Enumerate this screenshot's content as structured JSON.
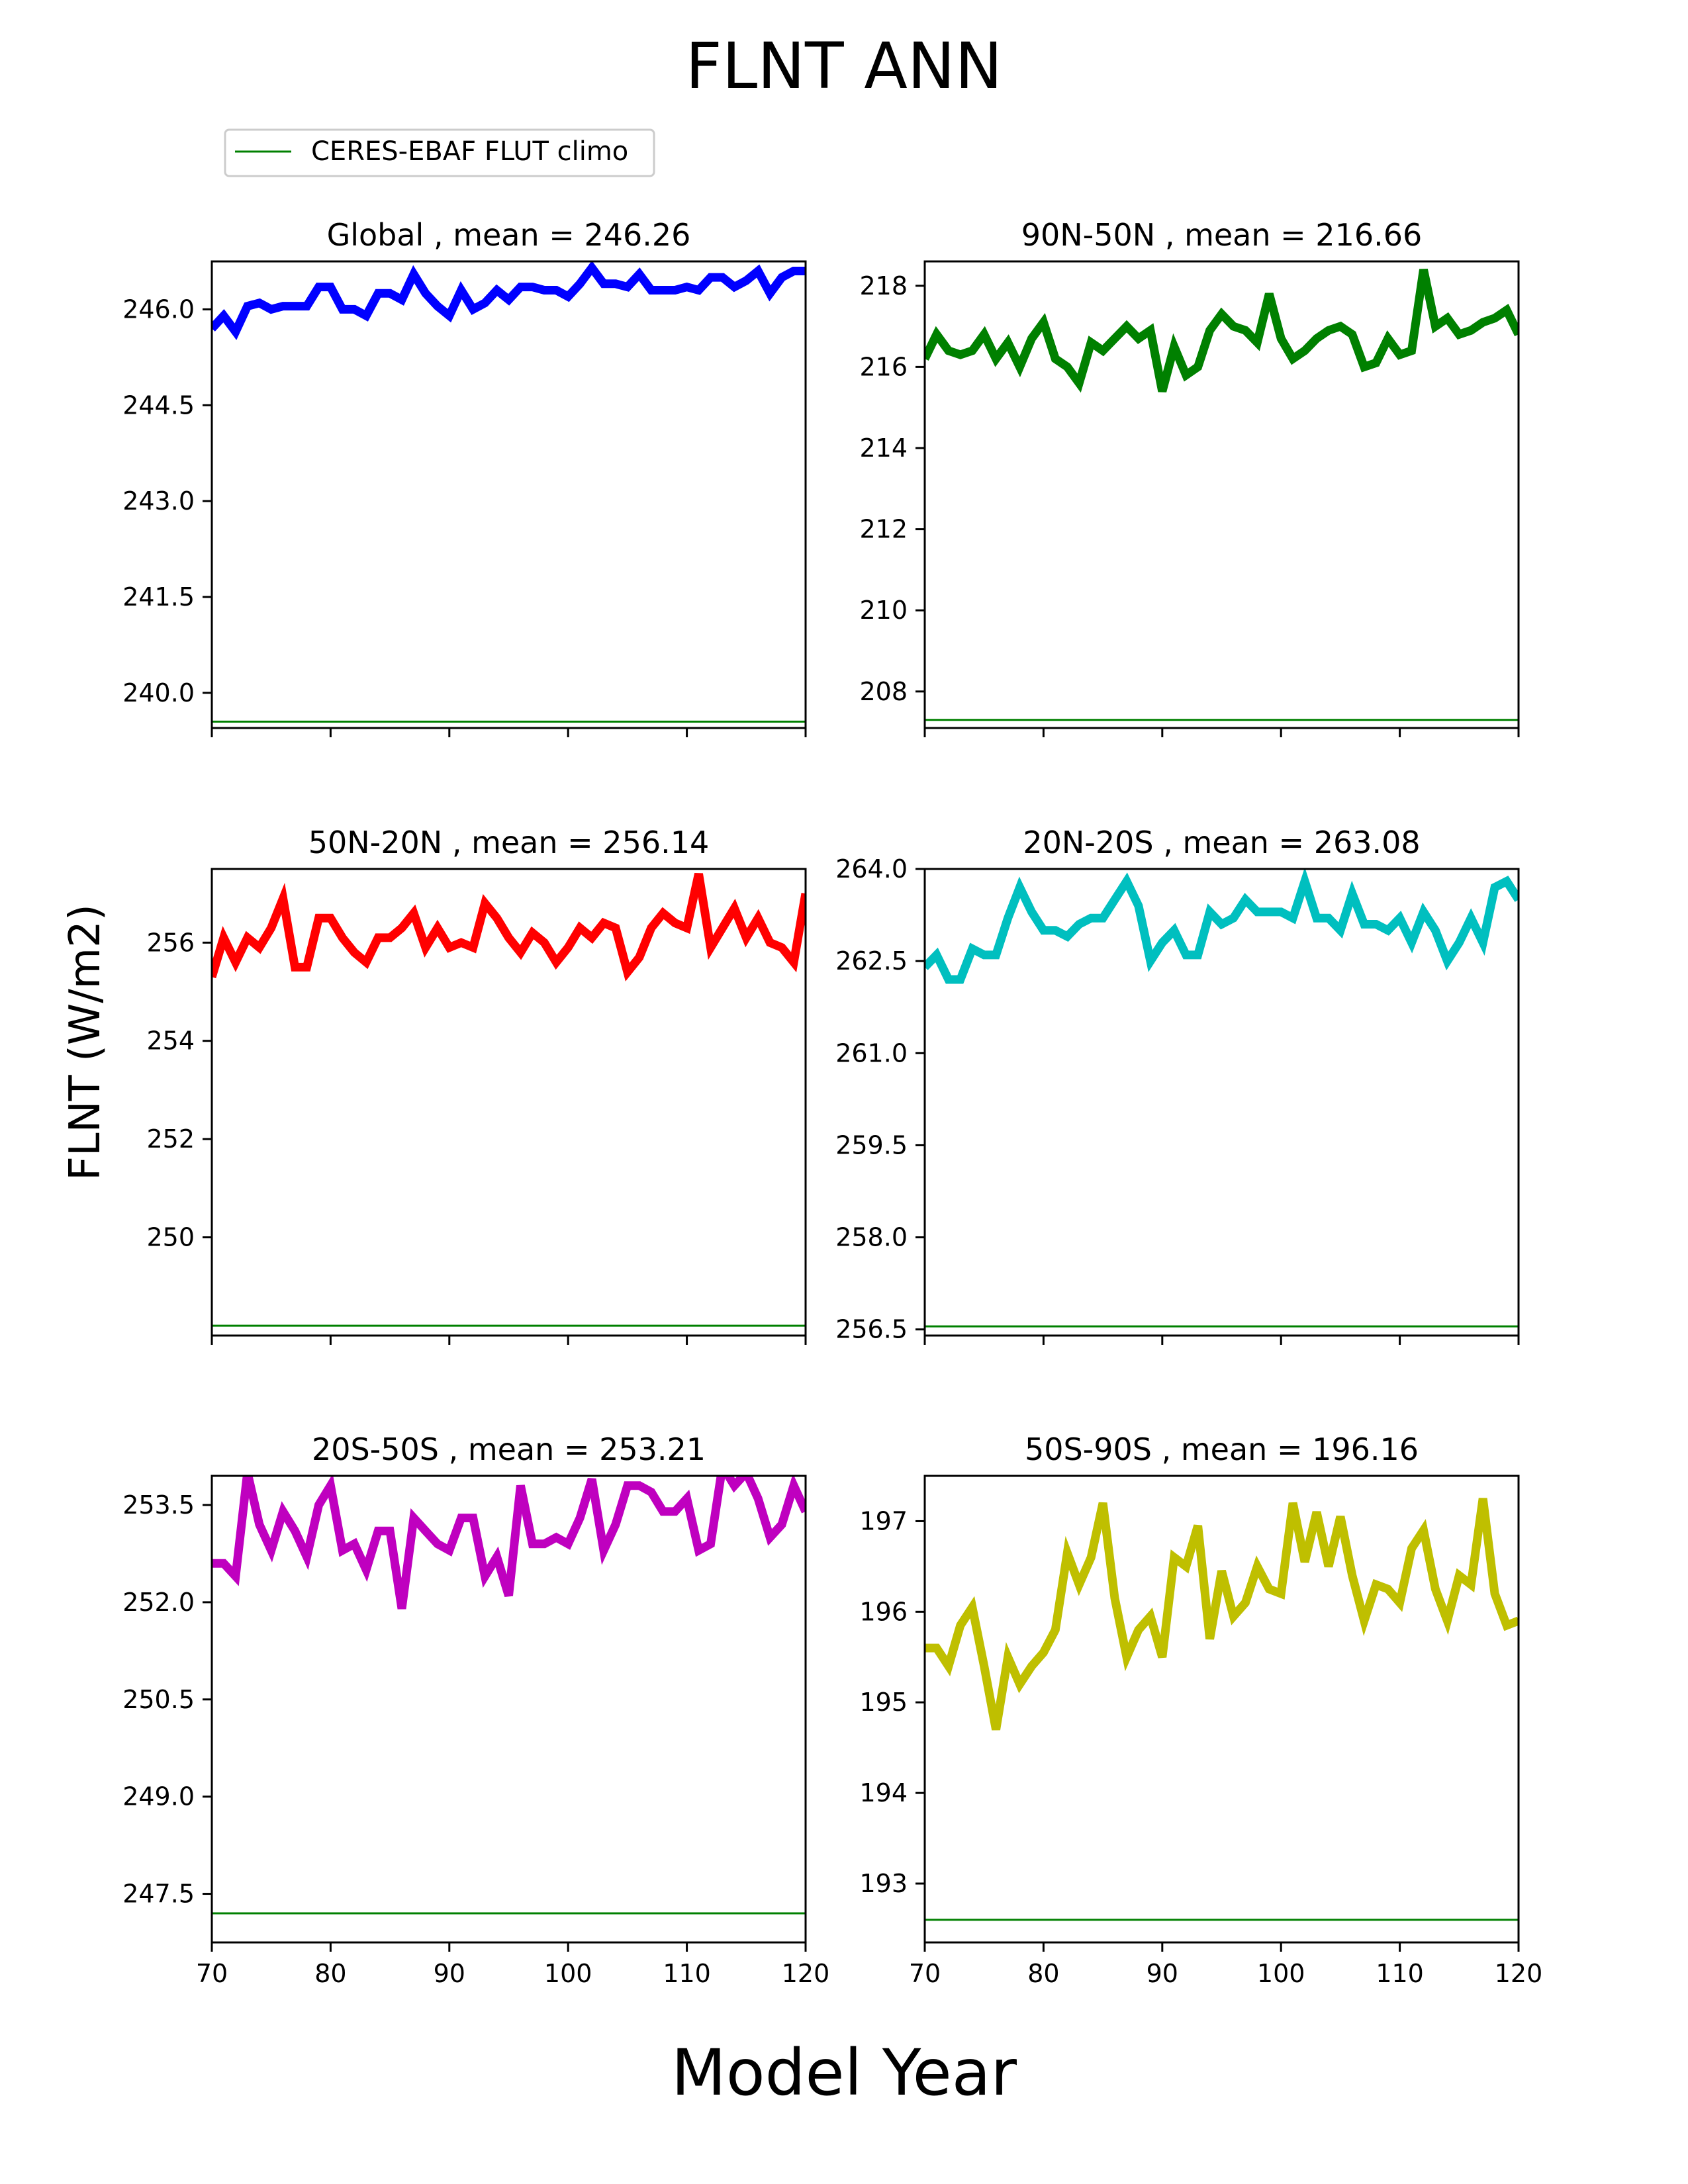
{
  "figure": {
    "title": "FLNT ANN",
    "ylabel": "FLNT (W/m2)",
    "xlabel": "Model Year"
  },
  "legend": {
    "label": "CERES-EBAF FLUT climo",
    "color": "#008000",
    "placement": "top-left"
  },
  "chart_data": [
    {
      "type": "line",
      "title": "Global , mean = 246.26",
      "color": "#0000ff",
      "xlim": [
        70,
        120
      ],
      "ylim": [
        239.45,
        246.75
      ],
      "yticks": [
        240.0,
        241.5,
        243.0,
        244.5,
        246.0
      ],
      "ytick_labels": [
        "240.0",
        "241.5",
        "243.0",
        "244.5",
        "246.0"
      ],
      "xticks": [
        70,
        80,
        90,
        100,
        110,
        120
      ],
      "xtick_labels": [],
      "climo": 239.55,
      "x": [
        70,
        71,
        72,
        73,
        74,
        75,
        76,
        77,
        78,
        79,
        80,
        81,
        82,
        83,
        84,
        85,
        86,
        87,
        88,
        89,
        90,
        91,
        92,
        93,
        94,
        95,
        96,
        97,
        98,
        99,
        100,
        101,
        102,
        103,
        104,
        105,
        106,
        107,
        108,
        109,
        110,
        111,
        112,
        113,
        114,
        115,
        116,
        117,
        118,
        119,
        120
      ],
      "values": [
        245.7,
        245.9,
        245.65,
        246.05,
        246.1,
        246.0,
        246.05,
        246.05,
        246.05,
        246.35,
        246.35,
        246.0,
        246.0,
        245.9,
        246.25,
        246.25,
        246.15,
        246.55,
        246.25,
        246.05,
        245.9,
        246.3,
        246.0,
        246.1,
        246.3,
        246.15,
        246.35,
        246.35,
        246.3,
        246.3,
        246.2,
        246.4,
        246.65,
        246.4,
        246.4,
        246.35,
        246.55,
        246.3,
        246.3,
        246.3,
        246.35,
        246.3,
        246.5,
        246.5,
        246.35,
        246.45,
        246.6,
        246.25,
        246.5,
        246.6,
        246.6
      ]
    },
    {
      "type": "line",
      "title": "90N-50N , mean = 216.66",
      "color": "#008000",
      "xlim": [
        70,
        120
      ],
      "ylim": [
        207.1,
        218.6
      ],
      "yticks": [
        208,
        210,
        212,
        214,
        216,
        218
      ],
      "ytick_labels": [
        "208",
        "210",
        "212",
        "214",
        "216",
        "218"
      ],
      "xticks": [
        70,
        80,
        90,
        100,
        110,
        120
      ],
      "xtick_labels": [],
      "climo": 207.3,
      "x": [
        70,
        71,
        72,
        73,
        74,
        75,
        76,
        77,
        78,
        79,
        80,
        81,
        82,
        83,
        84,
        85,
        86,
        87,
        88,
        89,
        90,
        91,
        92,
        93,
        94,
        95,
        96,
        97,
        98,
        99,
        100,
        101,
        102,
        103,
        104,
        105,
        106,
        107,
        108,
        109,
        110,
        111,
        112,
        113,
        114,
        115,
        116,
        117,
        118,
        119,
        120
      ],
      "values": [
        216.2,
        216.8,
        216.4,
        216.3,
        216.4,
        216.8,
        216.2,
        216.6,
        216.0,
        216.7,
        217.1,
        216.2,
        216.0,
        215.6,
        216.6,
        216.4,
        216.7,
        217.0,
        216.7,
        216.9,
        215.4,
        216.5,
        215.8,
        216.0,
        216.9,
        217.3,
        217.0,
        216.9,
        216.6,
        217.8,
        216.7,
        216.2,
        216.4,
        216.7,
        216.9,
        217.0,
        216.8,
        216.0,
        216.1,
        216.7,
        216.3,
        216.4,
        218.4,
        217.0,
        217.2,
        216.8,
        216.9,
        217.1,
        217.2,
        217.4,
        216.8
      ]
    },
    {
      "type": "line",
      "title": "50N-20N , mean = 256.14",
      "color": "#ff0000",
      "xlim": [
        70,
        120
      ],
      "ylim": [
        248.0,
        257.5
      ],
      "yticks": [
        250,
        252,
        254,
        256
      ],
      "ytick_labels": [
        "250",
        "252",
        "254",
        "256"
      ],
      "xticks": [
        70,
        80,
        90,
        100,
        110,
        120
      ],
      "xtick_labels": [],
      "climo": 248.2,
      "x": [
        70,
        71,
        72,
        73,
        74,
        75,
        76,
        77,
        78,
        79,
        80,
        81,
        82,
        83,
        84,
        85,
        86,
        87,
        88,
        89,
        90,
        91,
        92,
        93,
        94,
        95,
        96,
        97,
        98,
        99,
        100,
        101,
        102,
        103,
        104,
        105,
        106,
        107,
        108,
        109,
        110,
        111,
        112,
        113,
        114,
        115,
        116,
        117,
        118,
        119,
        120
      ],
      "values": [
        255.3,
        256.1,
        255.6,
        256.1,
        255.9,
        256.3,
        256.9,
        255.5,
        255.5,
        256.5,
        256.5,
        256.1,
        255.8,
        255.6,
        256.1,
        256.1,
        256.3,
        256.6,
        255.9,
        256.3,
        255.9,
        256.0,
        255.9,
        256.8,
        256.5,
        256.1,
        255.8,
        256.2,
        256.0,
        255.6,
        255.9,
        256.3,
        256.1,
        256.4,
        256.3,
        255.4,
        255.7,
        256.3,
        256.6,
        256.4,
        256.3,
        257.4,
        255.9,
        256.3,
        256.7,
        256.1,
        256.5,
        256.0,
        255.9,
        255.6,
        257.0
      ]
    },
    {
      "type": "line",
      "title": "20N-20S , mean = 263.08",
      "color": "#00bfbf",
      "xlim": [
        70,
        120
      ],
      "ylim": [
        256.4,
        264.0
      ],
      "yticks": [
        256.5,
        258.0,
        259.5,
        261.0,
        262.5,
        264.0
      ],
      "ytick_labels": [
        "256.5",
        "258.0",
        "259.5",
        "261.0",
        "262.5",
        "264.0"
      ],
      "xticks": [
        70,
        80,
        90,
        100,
        110,
        120
      ],
      "xtick_labels": [],
      "climo": 256.55,
      "x": [
        70,
        71,
        72,
        73,
        74,
        75,
        76,
        77,
        78,
        79,
        80,
        81,
        82,
        83,
        84,
        85,
        86,
        87,
        88,
        89,
        90,
        91,
        92,
        93,
        94,
        95,
        96,
        97,
        98,
        99,
        100,
        101,
        102,
        103,
        104,
        105,
        106,
        107,
        108,
        109,
        110,
        111,
        112,
        113,
        114,
        115,
        116,
        117,
        118,
        119,
        120
      ],
      "values": [
        262.4,
        262.6,
        262.2,
        262.2,
        262.7,
        262.6,
        262.6,
        263.2,
        263.7,
        263.3,
        263.0,
        263.0,
        262.9,
        263.1,
        263.2,
        263.2,
        263.5,
        263.8,
        263.4,
        262.5,
        262.8,
        263.0,
        262.6,
        262.6,
        263.3,
        263.1,
        263.2,
        263.5,
        263.3,
        263.3,
        263.3,
        263.2,
        263.8,
        263.2,
        263.2,
        263.0,
        263.6,
        263.1,
        263.1,
        263.0,
        263.2,
        262.8,
        263.3,
        263.0,
        262.5,
        262.8,
        263.2,
        262.8,
        263.7,
        263.8,
        263.5
      ]
    },
    {
      "type": "line",
      "title": "20S-50S , mean = 253.21",
      "color": "#bf00bf",
      "xlim": [
        70,
        120
      ],
      "ylim": [
        246.75,
        253.95
      ],
      "yticks": [
        247.5,
        249.0,
        250.5,
        252.0,
        253.5
      ],
      "ytick_labels": [
        "247.5",
        "249.0",
        "250.5",
        "252.0",
        "253.5"
      ],
      "xticks": [
        70,
        80,
        90,
        100,
        110,
        120
      ],
      "xtick_labels": [
        "70",
        "80",
        "90",
        "100",
        "110",
        "120"
      ],
      "climo": 247.2,
      "x": [
        70,
        71,
        72,
        73,
        74,
        75,
        76,
        77,
        78,
        79,
        80,
        81,
        82,
        83,
        84,
        85,
        86,
        87,
        88,
        89,
        90,
        91,
        92,
        93,
        94,
        95,
        96,
        97,
        98,
        99,
        100,
        101,
        102,
        103,
        104,
        105,
        106,
        107,
        108,
        109,
        110,
        111,
        112,
        113,
        114,
        115,
        116,
        117,
        118,
        119,
        120
      ],
      "values": [
        252.6,
        252.6,
        252.4,
        254.0,
        253.2,
        252.8,
        253.4,
        253.1,
        252.7,
        253.5,
        253.8,
        252.8,
        252.9,
        252.5,
        253.1,
        253.1,
        251.9,
        253.3,
        253.1,
        252.9,
        252.8,
        253.3,
        253.3,
        252.4,
        252.7,
        252.1,
        253.8,
        252.9,
        252.9,
        253.0,
        252.9,
        253.3,
        253.9,
        252.8,
        253.2,
        253.8,
        253.8,
        253.7,
        253.4,
        253.4,
        253.6,
        252.8,
        252.9,
        254.1,
        253.8,
        254.0,
        253.6,
        253.0,
        253.2,
        253.8,
        253.4
      ]
    },
    {
      "type": "line",
      "title": "50S-90S , mean = 196.16",
      "color": "#bfbf00",
      "xlim": [
        70,
        120
      ],
      "ylim": [
        192.35,
        197.5
      ],
      "yticks": [
        193,
        194,
        195,
        196,
        197
      ],
      "ytick_labels": [
        "193",
        "194",
        "195",
        "196",
        "197"
      ],
      "xticks": [
        70,
        80,
        90,
        100,
        110,
        120
      ],
      "xtick_labels": [
        "70",
        "80",
        "90",
        "100",
        "110",
        "120"
      ],
      "climo": 192.6,
      "x": [
        70,
        71,
        72,
        73,
        74,
        75,
        76,
        77,
        78,
        79,
        80,
        81,
        82,
        83,
        84,
        85,
        86,
        87,
        88,
        89,
        90,
        91,
        92,
        93,
        94,
        95,
        96,
        97,
        98,
        99,
        100,
        101,
        102,
        103,
        104,
        105,
        106,
        107,
        108,
        109,
        110,
        111,
        112,
        113,
        114,
        115,
        116,
        117,
        118,
        119,
        120
      ],
      "values": [
        195.6,
        195.6,
        195.4,
        195.85,
        196.05,
        195.4,
        194.7,
        195.5,
        195.2,
        195.4,
        195.55,
        195.8,
        196.65,
        196.3,
        196.6,
        197.2,
        196.15,
        195.5,
        195.8,
        195.95,
        195.5,
        196.6,
        196.5,
        196.95,
        195.7,
        196.45,
        195.95,
        196.1,
        196.5,
        196.25,
        196.2,
        197.2,
        196.55,
        197.1,
        196.5,
        197.05,
        196.4,
        195.9,
        196.3,
        196.25,
        196.1,
        196.7,
        196.9,
        196.25,
        195.9,
        196.4,
        196.3,
        197.25,
        196.2,
        195.85,
        195.9
      ]
    }
  ]
}
